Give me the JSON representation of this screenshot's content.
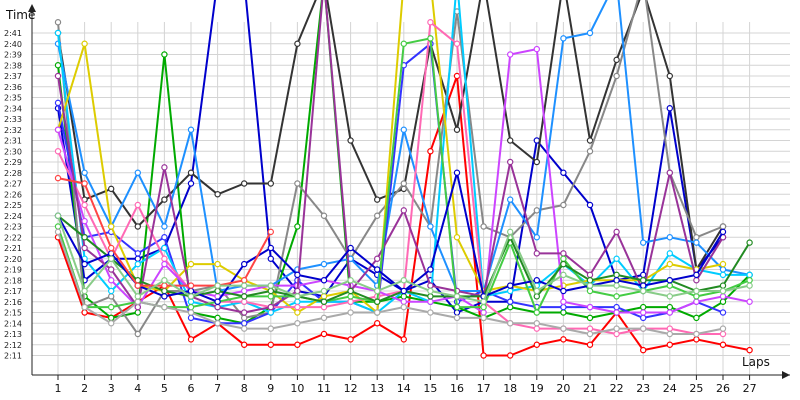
{
  "chart_data": {
    "type": "line",
    "ylabel": "Time",
    "xlabel": "Laps",
    "x": [
      1,
      2,
      3,
      4,
      5,
      6,
      7,
      8,
      9,
      10,
      11,
      12,
      13,
      14,
      15,
      16,
      17,
      18,
      19,
      20,
      21,
      22,
      23,
      24,
      25,
      26,
      27
    ],
    "x_tick_labels": [
      "1",
      "2",
      "3",
      "4",
      "5",
      "6",
      "7",
      "8",
      "9",
      "10",
      "11",
      "12",
      "13",
      "14",
      "15",
      "16",
      "17",
      "18",
      "19",
      "20",
      "21",
      "22",
      "23",
      "24",
      "25",
      "26",
      "27"
    ],
    "y_tick_labels": [
      "2:11",
      "2:12",
      "2:13",
      "2:14",
      "2:15",
      "2:16",
      "2:17",
      "2:18",
      "2:19",
      "2:20",
      "2:21",
      "2:22",
      "2:23",
      "2:24",
      "2:25",
      "2:26",
      "2:27",
      "2:28",
      "2:29",
      "2:30",
      "2:31",
      "2:32",
      "2:33",
      "2:34",
      "2:35",
      "2:36",
      "2:37",
      "2:38",
      "2:39",
      "2:40",
      "2:41"
    ],
    "y_unit": "seconds",
    "ylim": [
      130,
      163
    ],
    "grid": true,
    "series": [
      {
        "color": "#ff0000",
        "values": [
          142.0,
          135.0,
          134.5,
          136.0,
          137.5,
          132.5,
          134.0,
          132.0,
          132.0,
          132.0,
          133.0,
          132.5,
          134.0,
          132.5,
          150.0,
          157.0,
          131.0,
          131.0,
          132.0,
          132.5,
          132.0,
          135.0,
          131.5,
          132.0,
          132.5,
          132.0,
          131.5
        ]
      },
      {
        "color": "#0000cc",
        "values": [
          154.0,
          138.0,
          140.0,
          140.0,
          141.0,
          147.0,
          190.0,
          170.0,
          140.0,
          137.0,
          136.5,
          140.0,
          138.5,
          137.0,
          138.0,
          135.0,
          136.0,
          136.0,
          151.0,
          148.0,
          145.0,
          138.0,
          138.5,
          154.0,
          139.0,
          142.0,
          null
        ]
      },
      {
        "color": "#00aa00",
        "values": [
          158.0,
          136.5,
          134.5,
          135.0,
          159.0,
          135.0,
          134.5,
          134.0,
          135.5,
          143.0,
          170.0,
          136.0,
          136.0,
          136.5,
          136.0,
          135.5,
          134.5,
          135.5,
          135.0,
          135.0,
          134.5,
          135.0,
          135.5,
          135.5,
          134.5,
          136.0,
          138.5
        ]
      },
      {
        "color": "#333333",
        "values": [
          161.0,
          145.5,
          146.5,
          143.0,
          145.5,
          148.0,
          146.0,
          147.0,
          147.0,
          160.0,
          190.0,
          151.0,
          145.5,
          146.5,
          160.0,
          152.0,
          180.0,
          151.0,
          149.0,
          180.0,
          151.0,
          158.5,
          165.0,
          157.0,
          139.0,
          143.0,
          null
        ]
      },
      {
        "color": "#888888",
        "values": [
          162.0,
          135.5,
          136.5,
          133.0,
          137.0,
          137.0,
          137.5,
          134.5,
          135.0,
          147.0,
          144.0,
          140.0,
          144.0,
          147.0,
          143.0,
          163.0,
          143.0,
          142.0,
          144.5,
          145.0,
          150.0,
          157.0,
          180.0,
          148.0,
          142.0,
          143.0,
          null
        ]
      },
      {
        "color": "#1e90ff",
        "values": [
          160.0,
          148.0,
          143.0,
          148.0,
          143.0,
          152.0,
          137.0,
          137.5,
          137.5,
          139.0,
          139.5,
          140.0,
          137.5,
          152.0,
          143.0,
          137.0,
          137.0,
          145.5,
          142.0,
          160.5,
          161.0,
          180.0,
          141.5,
          142.0,
          141.5,
          139.0,
          138.5
        ]
      },
      {
        "color": "#3333ff",
        "values": [
          154.5,
          142.0,
          142.5,
          140.5,
          142.0,
          134.5,
          134.0,
          134.0,
          135.0,
          138.0,
          136.0,
          136.0,
          135.0,
          158.0,
          160.0,
          136.0,
          137.0,
          136.0,
          135.5,
          135.5,
          135.5,
          135.5,
          134.5,
          135.0,
          136.0,
          135.0,
          null
        ]
      },
      {
        "color": "#00ccff",
        "values": [
          161.0,
          140.0,
          137.0,
          139.5,
          141.0,
          136.0,
          135.5,
          136.0,
          135.0,
          136.0,
          136.0,
          136.0,
          135.0,
          137.0,
          136.0,
          180.0,
          136.5,
          137.0,
          137.5,
          139.5,
          137.5,
          140.0,
          137.0,
          140.5,
          139.0,
          138.5,
          138.5
        ]
      },
      {
        "color": "#ddcc00",
        "values": [
          152.0,
          160.0,
          143.0,
          137.5,
          137.0,
          139.5,
          139.5,
          138.0,
          137.0,
          135.0,
          136.5,
          137.0,
          135.0,
          180.0,
          180.0,
          142.0,
          137.0,
          137.5,
          137.0,
          137.5,
          138.0,
          138.0,
          138.0,
          139.5,
          139.0,
          139.5,
          null
        ]
      },
      {
        "color": "#ff69b4",
        "values": [
          150.0,
          145.0,
          140.0,
          145.0,
          140.0,
          137.0,
          136.0,
          136.0,
          135.5,
          135.5,
          135.5,
          136.0,
          136.5,
          137.0,
          162.0,
          160.0,
          136.0,
          134.0,
          133.5,
          133.5,
          133.5,
          133.0,
          133.5,
          133.5,
          133.0,
          133.0,
          null
        ]
      },
      {
        "color": "#cc44ff",
        "values": [
          152.0,
          143.5,
          138.0,
          135.5,
          139.5,
          137.0,
          136.5,
          137.0,
          137.5,
          137.5,
          138.0,
          137.5,
          137.0,
          136.0,
          136.0,
          136.5,
          135.0,
          159.0,
          159.5,
          136.0,
          135.5,
          135.0,
          135.0,
          135.0,
          136.0,
          136.5,
          136.0
        ]
      },
      {
        "color": "#993399",
        "values": [
          157.0,
          141.0,
          139.0,
          135.5,
          148.5,
          136.5,
          135.5,
          135.0,
          135.5,
          137.0,
          180.0,
          137.0,
          140.0,
          144.5,
          137.5,
          137.0,
          136.5,
          149.0,
          140.5,
          140.5,
          138.5,
          142.5,
          137.0,
          148.0,
          138.0,
          142.0,
          null
        ]
      },
      {
        "color": "#44cc44",
        "values": [
          143.0,
          135.5,
          135.5,
          136.0,
          135.5,
          135.5,
          136.0,
          136.5,
          136.5,
          136.5,
          136.0,
          136.5,
          136.0,
          160.0,
          160.5,
          135.5,
          135.5,
          141.5,
          135.0,
          140.0,
          137.0,
          136.5,
          137.0,
          137.5,
          136.5,
          137.0,
          138.0
        ]
      },
      {
        "color": "#228b22",
        "values": [
          144.0,
          142.0,
          140.0,
          138.0,
          137.0,
          136.5,
          137.0,
          136.5,
          137.0,
          136.5,
          136.0,
          137.0,
          136.0,
          137.0,
          136.5,
          136.5,
          136.5,
          142.0,
          136.5,
          139.5,
          138.0,
          138.5,
          138.0,
          138.0,
          137.0,
          137.5,
          141.5
        ]
      },
      {
        "color": "#aaaaaa",
        "values": [
          142.5,
          135.5,
          134.0,
          136.0,
          135.5,
          135.0,
          134.0,
          133.5,
          133.5,
          134.0,
          134.5,
          135.0,
          135.0,
          135.5,
          135.0,
          134.5,
          134.5,
          134.0,
          134.0,
          133.5,
          133.0,
          133.5,
          133.5,
          133.0,
          133.0,
          133.5,
          null
        ]
      },
      {
        "color": "#0000cc",
        "values": [
          144.0,
          139.5,
          140.5,
          137.5,
          136.5,
          137.0,
          136.0,
          139.5,
          141.0,
          138.5,
          138.0,
          141.0,
          139.0,
          137.0,
          139.0,
          148.0,
          136.5,
          137.5,
          138.0,
          137.0,
          137.5,
          138.0,
          137.5,
          138.0,
          138.5,
          142.5,
          null
        ]
      },
      {
        "color": "#ff4444",
        "values": [
          147.5,
          147.0,
          141.0,
          137.5,
          137.5,
          137.5,
          137.5,
          138.0,
          142.5,
          null,
          null,
          null,
          null,
          null,
          null,
          null,
          null,
          null,
          null,
          null,
          null,
          null,
          null,
          null,
          null,
          null,
          null
        ]
      },
      {
        "color": "#88cc88",
        "values": [
          144.0,
          137.0,
          140.0,
          136.5,
          138.0,
          136.5,
          137.5,
          137.5,
          137.5,
          136.5,
          137.0,
          138.0,
          137.0,
          138.0,
          137.0,
          136.5,
          136.0,
          142.5,
          137.0,
          138.5,
          137.5,
          137.5,
          137.0,
          136.5,
          137.0,
          137.0,
          137.5
        ]
      }
    ]
  }
}
